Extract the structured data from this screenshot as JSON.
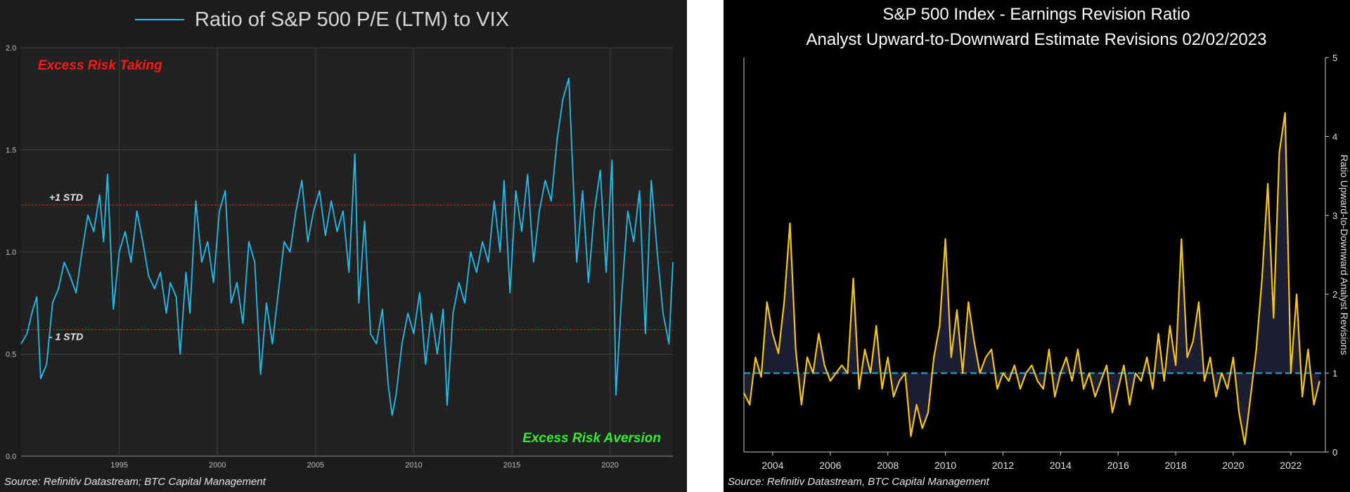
{
  "chart_data": [
    {
      "type": "line",
      "title": "Ratio of S&P 500 P/E (LTM) to VIX",
      "legend": {
        "entries": [
          "Ratio of S&P 500 P/E (LTM) to VIX"
        ],
        "placement": "top-center"
      },
      "xlabel": "",
      "ylabel": "",
      "xlim": [
        1990.0,
        2023.2
      ],
      "ylim": [
        0.0,
        2.0
      ],
      "x_ticks": [
        "1995",
        "2000",
        "2005",
        "2010",
        "2015",
        "2020"
      ],
      "y_ticks": [
        "0.0",
        "0.5",
        "1.0",
        "1.5",
        "2.0"
      ],
      "grid": true,
      "line_color": "#1ec0f0",
      "reference_lines": [
        {
          "label": "+1 STD",
          "value": 1.23,
          "color": "#cc2222"
        },
        {
          "label": "- 1 STD",
          "value": 0.62,
          "color": "#cc2222"
        }
      ],
      "annotations": [
        {
          "text": "Excess Risk Taking",
          "color": "#ff1a1a"
        },
        {
          "text": "Excess Risk Aversion",
          "color": "#33ee33"
        }
      ],
      "source": "Source: Refinitiv Datastream; BTC Capital Management",
      "series": [
        {
          "name": "Ratio of S&P 500 P/E (LTM) to VIX",
          "x": [
            1990.0,
            1990.3,
            1990.6,
            1990.8,
            1991.0,
            1991.3,
            1991.6,
            1991.9,
            1992.2,
            1992.5,
            1992.8,
            1993.1,
            1993.4,
            1993.7,
            1994.0,
            1994.2,
            1994.4,
            1994.7,
            1995.0,
            1995.3,
            1995.6,
            1995.9,
            1996.2,
            1996.5,
            1996.8,
            1997.1,
            1997.4,
            1997.6,
            1997.9,
            1998.1,
            1998.4,
            1998.6,
            1998.9,
            1999.2,
            1999.5,
            1999.8,
            2000.1,
            2000.4,
            2000.7,
            2001.0,
            2001.3,
            2001.6,
            2001.9,
            2002.2,
            2002.5,
            2002.8,
            2003.1,
            2003.4,
            2003.7,
            2004.0,
            2004.3,
            2004.6,
            2004.9,
            2005.2,
            2005.5,
            2005.8,
            2006.1,
            2006.4,
            2006.7,
            2007.0,
            2007.2,
            2007.5,
            2007.8,
            2008.1,
            2008.4,
            2008.7,
            2008.9,
            2009.1,
            2009.4,
            2009.7,
            2010.0,
            2010.3,
            2010.6,
            2010.9,
            2011.2,
            2011.5,
            2011.7,
            2012.0,
            2012.3,
            2012.6,
            2012.9,
            2013.2,
            2013.5,
            2013.8,
            2014.1,
            2014.4,
            2014.6,
            2014.9,
            2015.2,
            2015.5,
            2015.8,
            2016.1,
            2016.4,
            2016.7,
            2017.0,
            2017.3,
            2017.6,
            2017.9,
            2018.1,
            2018.3,
            2018.6,
            2018.9,
            2019.2,
            2019.5,
            2019.8,
            2020.1,
            2020.3,
            2020.6,
            2020.9,
            2021.2,
            2021.5,
            2021.8,
            2022.1,
            2022.4,
            2022.7,
            2023.0,
            2023.2
          ],
          "y": [
            0.55,
            0.6,
            0.72,
            0.78,
            0.38,
            0.45,
            0.75,
            0.82,
            0.95,
            0.88,
            0.8,
            1.0,
            1.18,
            1.1,
            1.28,
            1.05,
            1.38,
            0.72,
            1.0,
            1.1,
            0.95,
            1.2,
            1.05,
            0.88,
            0.82,
            0.9,
            0.7,
            0.85,
            0.78,
            0.5,
            0.9,
            0.7,
            1.25,
            0.95,
            1.05,
            0.85,
            1.2,
            1.3,
            0.75,
            0.85,
            0.65,
            1.05,
            0.95,
            0.4,
            0.75,
            0.55,
            0.8,
            1.05,
            1.0,
            1.2,
            1.35,
            1.05,
            1.2,
            1.3,
            1.08,
            1.25,
            1.1,
            1.2,
            0.9,
            1.48,
            0.75,
            1.15,
            0.6,
            0.55,
            0.72,
            0.35,
            0.2,
            0.3,
            0.55,
            0.7,
            0.6,
            0.8,
            0.45,
            0.7,
            0.5,
            0.72,
            0.25,
            0.7,
            0.85,
            0.75,
            1.0,
            0.9,
            1.05,
            0.95,
            1.25,
            1.0,
            1.35,
            0.8,
            1.3,
            1.1,
            1.38,
            0.95,
            1.2,
            1.35,
            1.25,
            1.55,
            1.75,
            1.85,
            1.4,
            0.95,
            1.3,
            0.85,
            1.2,
            1.4,
            0.9,
            1.45,
            0.3,
            0.8,
            1.2,
            1.05,
            1.3,
            0.6,
            1.35,
            1.0,
            0.7,
            0.55,
            0.95
          ]
        }
      ]
    },
    {
      "type": "line",
      "title": "S&P 500 Index - Earnings Revision Ratio",
      "subtitle": "Analyst Upward-to-Downward Estimate Revisions 02/02/2023",
      "xlabel": "",
      "ylabel": "Ratio Upward-to-Downward Analyst Revisions",
      "y_axis_side": "right",
      "xlim": [
        2003.0,
        2023.2
      ],
      "ylim": [
        0,
        5
      ],
      "x_ticks": [
        "2004",
        "2006",
        "2008",
        "2010",
        "2012",
        "2014",
        "2016",
        "2018",
        "2020",
        "2022"
      ],
      "y_ticks": [
        "0",
        "1",
        "2",
        "3",
        "4",
        "5"
      ],
      "grid": false,
      "line_color": "#f5c518",
      "fill_color": "#1e1e33",
      "baseline": 1,
      "baseline_color": "#1aa3cc",
      "source": "Source: Refinitiv Datastream, BTC Capital Management",
      "series": [
        {
          "name": "",
          "x": [
            2003.0,
            2003.2,
            2003.4,
            2003.6,
            2003.8,
            2004.0,
            2004.2,
            2004.4,
            2004.6,
            2004.8,
            2005.0,
            2005.2,
            2005.4,
            2005.6,
            2005.8,
            2006.0,
            2006.2,
            2006.4,
            2006.6,
            2006.8,
            2007.0,
            2007.2,
            2007.4,
            2007.6,
            2007.8,
            2008.0,
            2008.2,
            2008.4,
            2008.6,
            2008.8,
            2009.0,
            2009.2,
            2009.4,
            2009.6,
            2009.8,
            2010.0,
            2010.2,
            2010.4,
            2010.6,
            2010.8,
            2011.0,
            2011.2,
            2011.4,
            2011.6,
            2011.8,
            2012.0,
            2012.2,
            2012.4,
            2012.6,
            2012.8,
            2013.0,
            2013.2,
            2013.4,
            2013.6,
            2013.8,
            2014.0,
            2014.2,
            2014.4,
            2014.6,
            2014.8,
            2015.0,
            2015.2,
            2015.4,
            2015.6,
            2015.8,
            2016.0,
            2016.2,
            2016.4,
            2016.6,
            2016.8,
            2017.0,
            2017.2,
            2017.4,
            2017.6,
            2017.8,
            2018.0,
            2018.2,
            2018.4,
            2018.6,
            2018.8,
            2019.0,
            2019.2,
            2019.4,
            2019.6,
            2019.8,
            2020.0,
            2020.2,
            2020.4,
            2020.6,
            2020.8,
            2021.0,
            2021.2,
            2021.4,
            2021.6,
            2021.8,
            2022.0,
            2022.2,
            2022.4,
            2022.6,
            2022.8,
            2023.0
          ],
          "y": [
            0.75,
            0.6,
            1.2,
            0.95,
            1.9,
            1.5,
            1.25,
            1.9,
            2.9,
            1.3,
            0.6,
            1.2,
            1.0,
            1.5,
            1.1,
            0.9,
            1.0,
            1.1,
            1.0,
            2.2,
            0.8,
            1.3,
            1.0,
            1.6,
            0.8,
            1.2,
            0.7,
            0.9,
            1.0,
            0.2,
            0.6,
            0.3,
            0.5,
            1.2,
            1.6,
            2.7,
            1.2,
            1.8,
            1.0,
            1.9,
            1.4,
            1.0,
            1.2,
            1.3,
            0.8,
            1.0,
            0.9,
            1.1,
            0.8,
            1.0,
            1.1,
            0.9,
            0.8,
            1.3,
            0.7,
            1.0,
            1.2,
            0.9,
            1.3,
            0.8,
            1.0,
            0.7,
            0.9,
            1.1,
            0.5,
            0.8,
            1.1,
            0.6,
            1.0,
            0.9,
            1.2,
            0.8,
            1.5,
            0.9,
            1.6,
            1.1,
            2.7,
            1.2,
            1.4,
            1.9,
            0.9,
            1.2,
            0.7,
            1.0,
            0.8,
            1.2,
            0.5,
            0.1,
            0.7,
            1.3,
            2.2,
            3.4,
            1.7,
            3.8,
            4.3,
            1.0,
            2.0,
            0.7,
            1.3,
            0.6,
            0.9
          ]
        }
      ]
    }
  ]
}
